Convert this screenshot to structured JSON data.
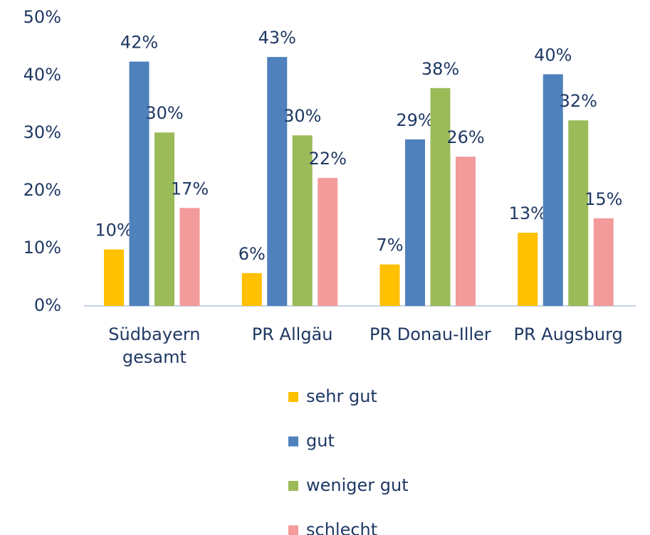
{
  "chart_data": {
    "type": "bar",
    "categories": [
      "Südbayern gesamt",
      "PR Allgäu",
      "PR Donau-Iller",
      "PR Augsburg"
    ],
    "series": [
      {
        "name": "sehr gut",
        "color": "#ffc000",
        "values": [
          9.8,
          5.7,
          7.2,
          12.7
        ],
        "value_labels": [
          "10%",
          "6%",
          "7%",
          "13%"
        ]
      },
      {
        "name": "gut",
        "color": "#4f81bd",
        "values": [
          42.4,
          43.2,
          28.9,
          40.2
        ],
        "value_labels": [
          "42%",
          "43%",
          "29%",
          "40%"
        ]
      },
      {
        "name": "weniger gut",
        "color": "#9bbb59",
        "values": [
          30.1,
          29.6,
          37.8,
          32.2
        ],
        "value_labels": [
          "30%",
          "30%",
          "38%",
          "32%"
        ]
      },
      {
        "name": "schlecht",
        "color": "#f39a9a",
        "values": [
          17.0,
          22.2,
          25.9,
          15.2
        ],
        "value_labels": [
          "17%",
          "22%",
          "26%",
          "15%"
        ]
      }
    ],
    "ylim": [
      0,
      50
    ],
    "yticks": [
      {
        "value": 0,
        "label": "0%"
      },
      {
        "value": 10,
        "label": "10%"
      },
      {
        "value": 20,
        "label": "20%"
      },
      {
        "value": 30,
        "label": "30%"
      },
      {
        "value": 40,
        "label": "40%"
      },
      {
        "value": 50,
        "label": "50%"
      }
    ],
    "grid": false,
    "legend": "bottom"
  }
}
